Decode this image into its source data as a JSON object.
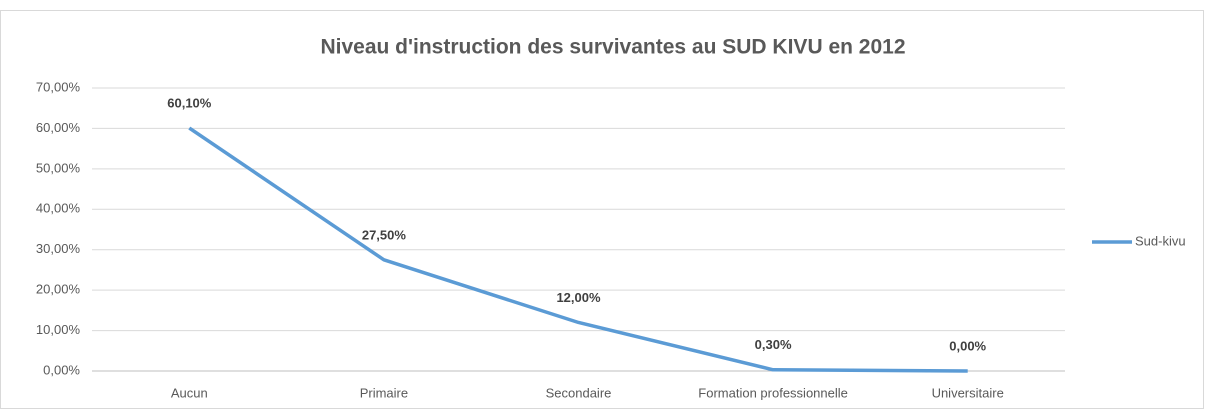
{
  "chart_data": {
    "type": "line",
    "title": "Niveau d'instruction des survivantes au SUD KIVU en 2012",
    "categories": [
      "Aucun",
      "Primaire",
      "Secondaire",
      "Formation professionnelle",
      "Universitaire"
    ],
    "series": [
      {
        "name": "Sud-kivu",
        "color": "#5b9bd5",
        "values": [
          60.1,
          27.5,
          12,
          0.3,
          0
        ],
        "value_labels": [
          "60,10%",
          "27,50%",
          "12,00%",
          "0,30%",
          "0,00%"
        ]
      }
    ],
    "ylim": [
      0,
      70
    ],
    "yticks": [
      {
        "value": 0,
        "label": "0,00%"
      },
      {
        "value": 10,
        "label": "10,00%"
      },
      {
        "value": 20,
        "label": "20,00%"
      },
      {
        "value": 30,
        "label": "30,00%"
      },
      {
        "value": 40,
        "label": "40,00%"
      },
      {
        "value": 50,
        "label": "50,00%"
      },
      {
        "value": 60,
        "label": "60,00%"
      },
      {
        "value": 70,
        "label": "70,00%"
      }
    ],
    "grid": true,
    "legend": "right"
  }
}
